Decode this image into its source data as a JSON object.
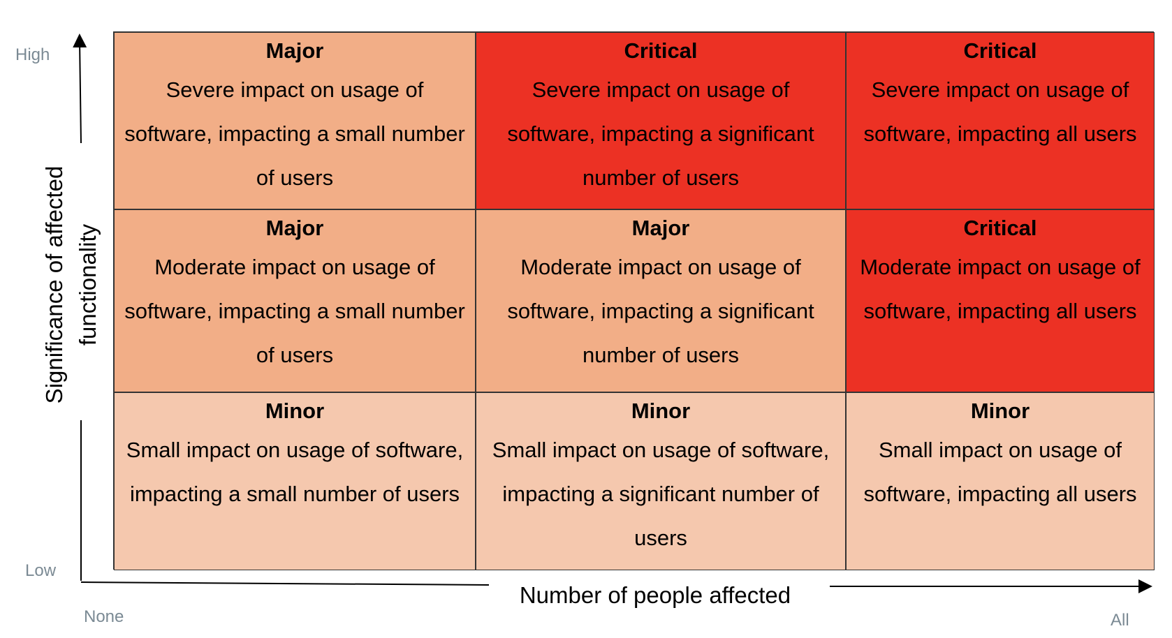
{
  "axes": {
    "y_label_line1": "Significance of affected",
    "y_label_line2": "functionality",
    "x_label": "Number of people affected",
    "y_high": "High",
    "y_low": "Low",
    "x_none": "None",
    "x_all": "All"
  },
  "matrix": {
    "rows": [
      [
        {
          "level": "major",
          "title": "Major",
          "desc": "Severe impact on usage of software, impacting a small number of users"
        },
        {
          "level": "critical",
          "title": "Critical",
          "desc": "Severe impact on usage of software, impacting a significant number of users"
        },
        {
          "level": "critical",
          "title": "Critical",
          "desc": "Severe impact on usage of software, impacting all users"
        }
      ],
      [
        {
          "level": "major",
          "title": "Major",
          "desc": "Moderate impact on usage of software, impacting a small number of users"
        },
        {
          "level": "major",
          "title": "Major",
          "desc": "Moderate impact on usage of software, impacting a significant number of users"
        },
        {
          "level": "critical",
          "title": "Critical",
          "desc": "Moderate impact on usage of software, impacting all users"
        }
      ],
      [
        {
          "level": "minor",
          "title": "Minor",
          "desc": "Small impact on usage of software, impacting a small number of users"
        },
        {
          "level": "minor",
          "title": "Minor",
          "desc": "Small impact on usage of software, impacting a significant number of users"
        },
        {
          "level": "minor",
          "title": "Minor",
          "desc": "Small impact on usage of software, impacting all users"
        }
      ]
    ]
  },
  "colors": {
    "major": "#f2ae87",
    "critical": "#ec3124",
    "minor": "#f5c8ae",
    "axis_tick_text": "#7b8a94"
  }
}
